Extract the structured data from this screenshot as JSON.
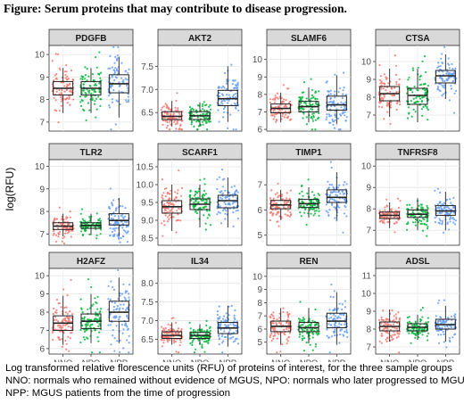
{
  "figure": {
    "title": "Figure: Serum proteins that may contribute to disease progression.",
    "caption_lines": [
      "Log transformed relative florescence units (RFU) of proteins of interest, for the three sample groups",
      "NNO: normals who remained without evidence of MGUS, NPO: normals who later progressed to MGUS,",
      "NPP: MGUS patients from the time of progression"
    ]
  },
  "chart_data": {
    "type": "boxplot",
    "ylabel": "log(RFU)",
    "xlabel": "",
    "categories": [
      "NNO",
      "NPO",
      "NPP"
    ],
    "colors": {
      "NNO": "#F8766D",
      "NPO": "#00BA38",
      "NPP": "#619CFF"
    },
    "panels": [
      {
        "title": "PDGFB",
        "ylim": [
          6.6,
          10.4
        ],
        "yticks": [
          7,
          8,
          9,
          10
        ],
        "boxes": [
          {
            "q1": 8.2,
            "median": 8.5,
            "q3": 8.8,
            "wlo": 7.4,
            "whi": 9.4
          },
          {
            "q1": 8.2,
            "median": 8.5,
            "q3": 8.8,
            "wlo": 7.4,
            "whi": 9.4
          },
          {
            "q1": 8.3,
            "median": 8.7,
            "q3": 9.1,
            "wlo": 7.2,
            "whi": 9.9
          }
        ]
      },
      {
        "title": "AKT2",
        "ylim": [
          6.1,
          7.95
        ],
        "yticks": [
          6.5,
          7.0,
          7.5
        ],
        "boxes": [
          {
            "q1": 6.35,
            "median": 6.42,
            "q3": 6.52,
            "wlo": 6.2,
            "whi": 6.75
          },
          {
            "q1": 6.35,
            "median": 6.43,
            "q3": 6.52,
            "wlo": 6.2,
            "whi": 6.72
          },
          {
            "q1": 6.65,
            "median": 6.8,
            "q3": 6.98,
            "wlo": 6.3,
            "whi": 7.5
          }
        ]
      },
      {
        "title": "SLAMF6",
        "ylim": [
          5.9,
          10.8
        ],
        "yticks": [
          6,
          7,
          8,
          9,
          10
        ],
        "boxes": [
          {
            "q1": 6.95,
            "median": 7.2,
            "q3": 7.45,
            "wlo": 6.4,
            "whi": 8.1
          },
          {
            "q1": 7.0,
            "median": 7.3,
            "q3": 7.6,
            "wlo": 6.4,
            "whi": 8.4
          },
          {
            "q1": 7.1,
            "median": 7.4,
            "q3": 7.9,
            "wlo": 6.3,
            "whi": 9.1
          }
        ]
      },
      {
        "title": "CTSA",
        "ylim": [
          6.1,
          10.9
        ],
        "yticks": [
          7,
          8,
          9,
          10
        ],
        "boxes": [
          {
            "q1": 7.8,
            "median": 8.2,
            "q3": 8.6,
            "wlo": 6.9,
            "whi": 9.6
          },
          {
            "q1": 7.6,
            "median": 8.1,
            "q3": 8.5,
            "wlo": 6.6,
            "whi": 9.6
          },
          {
            "q1": 8.8,
            "median": 9.2,
            "q3": 9.5,
            "wlo": 7.9,
            "whi": 10.4
          }
        ]
      },
      {
        "title": "TLR2",
        "ylim": [
          6.5,
          10.3
        ],
        "yticks": [
          7,
          8,
          9,
          10
        ],
        "boxes": [
          {
            "q1": 7.2,
            "median": 7.35,
            "q3": 7.5,
            "wlo": 6.9,
            "whi": 7.9
          },
          {
            "q1": 7.25,
            "median": 7.38,
            "q3": 7.5,
            "wlo": 6.95,
            "whi": 7.9
          },
          {
            "q1": 7.4,
            "median": 7.6,
            "q3": 7.9,
            "wlo": 6.9,
            "whi": 8.6
          }
        ]
      },
      {
        "title": "SCARF1",
        "ylim": [
          8.3,
          10.7
        ],
        "yticks": [
          8.5,
          9.0,
          9.5,
          10.0,
          10.5
        ],
        "boxes": [
          {
            "q1": 9.2,
            "median": 9.38,
            "q3": 9.55,
            "wlo": 8.7,
            "whi": 10.0
          },
          {
            "q1": 9.3,
            "median": 9.45,
            "q3": 9.6,
            "wlo": 8.8,
            "whi": 10.0
          },
          {
            "q1": 9.35,
            "median": 9.55,
            "q3": 9.7,
            "wlo": 8.8,
            "whi": 10.2
          }
        ]
      },
      {
        "title": "TIMP1",
        "ylim": [
          4.6,
          8.0
        ],
        "yticks": [
          5,
          6,
          7
        ],
        "boxes": [
          {
            "q1": 6.05,
            "median": 6.2,
            "q3": 6.38,
            "wlo": 5.6,
            "whi": 6.8
          },
          {
            "q1": 6.1,
            "median": 6.25,
            "q3": 6.42,
            "wlo": 5.7,
            "whi": 6.9
          },
          {
            "q1": 6.3,
            "median": 6.5,
            "q3": 6.8,
            "wlo": 5.6,
            "whi": 7.5
          }
        ]
      },
      {
        "title": "TNFRSF8",
        "ylim": [
          6.3,
          10.3
        ],
        "yticks": [
          7,
          8,
          9,
          10
        ],
        "boxes": [
          {
            "q1": 7.55,
            "median": 7.7,
            "q3": 7.85,
            "wlo": 7.1,
            "whi": 8.3
          },
          {
            "q1": 7.6,
            "median": 7.75,
            "q3": 7.95,
            "wlo": 7.0,
            "whi": 8.5
          },
          {
            "q1": 7.7,
            "median": 7.9,
            "q3": 8.15,
            "wlo": 7.0,
            "whi": 8.8
          }
        ]
      },
      {
        "title": "H2AFZ",
        "ylim": [
          5.7,
          10.4
        ],
        "yticks": [
          6,
          7,
          8,
          9,
          10
        ],
        "boxes": [
          {
            "q1": 7.0,
            "median": 7.4,
            "q3": 7.8,
            "wlo": 6.2,
            "whi": 8.9
          },
          {
            "q1": 7.1,
            "median": 7.5,
            "q3": 7.9,
            "wlo": 6.3,
            "whi": 9.0
          },
          {
            "q1": 7.5,
            "median": 8.0,
            "q3": 8.6,
            "wlo": 6.3,
            "whi": 9.9
          }
        ]
      },
      {
        "title": "IL34",
        "ylim": [
          6.1,
          8.4
        ],
        "yticks": [
          6.5,
          7.0,
          7.5,
          8.0
        ],
        "boxes": [
          {
            "q1": 6.52,
            "median": 6.6,
            "q3": 6.7,
            "wlo": 6.35,
            "whi": 6.95
          },
          {
            "q1": 6.52,
            "median": 6.6,
            "q3": 6.68,
            "wlo": 6.35,
            "whi": 6.9
          },
          {
            "q1": 6.65,
            "median": 6.8,
            "q3": 6.95,
            "wlo": 6.3,
            "whi": 7.4
          }
        ]
      },
      {
        "title": "REN",
        "ylim": [
          4.1,
          10.6
        ],
        "yticks": [
          5,
          6,
          7,
          8,
          9,
          10
        ],
        "boxes": [
          {
            "q1": 5.8,
            "median": 6.2,
            "q3": 6.6,
            "wlo": 4.8,
            "whi": 7.6
          },
          {
            "q1": 5.8,
            "median": 6.1,
            "q3": 6.5,
            "wlo": 4.9,
            "whi": 7.6
          },
          {
            "q1": 6.1,
            "median": 6.6,
            "q3": 7.2,
            "wlo": 4.8,
            "whi": 8.8
          }
        ]
      },
      {
        "title": "ADSL",
        "ylim": [
          6.6,
          11.4
        ],
        "yticks": [
          7,
          8,
          9,
          10,
          11
        ],
        "boxes": [
          {
            "q1": 7.9,
            "median": 8.15,
            "q3": 8.4,
            "wlo": 7.3,
            "whi": 9.1
          },
          {
            "q1": 7.9,
            "median": 8.1,
            "q3": 8.3,
            "wlo": 7.4,
            "whi": 8.8
          },
          {
            "q1": 8.0,
            "median": 8.25,
            "q3": 8.55,
            "wlo": 7.3,
            "whi": 9.3
          }
        ]
      }
    ]
  }
}
